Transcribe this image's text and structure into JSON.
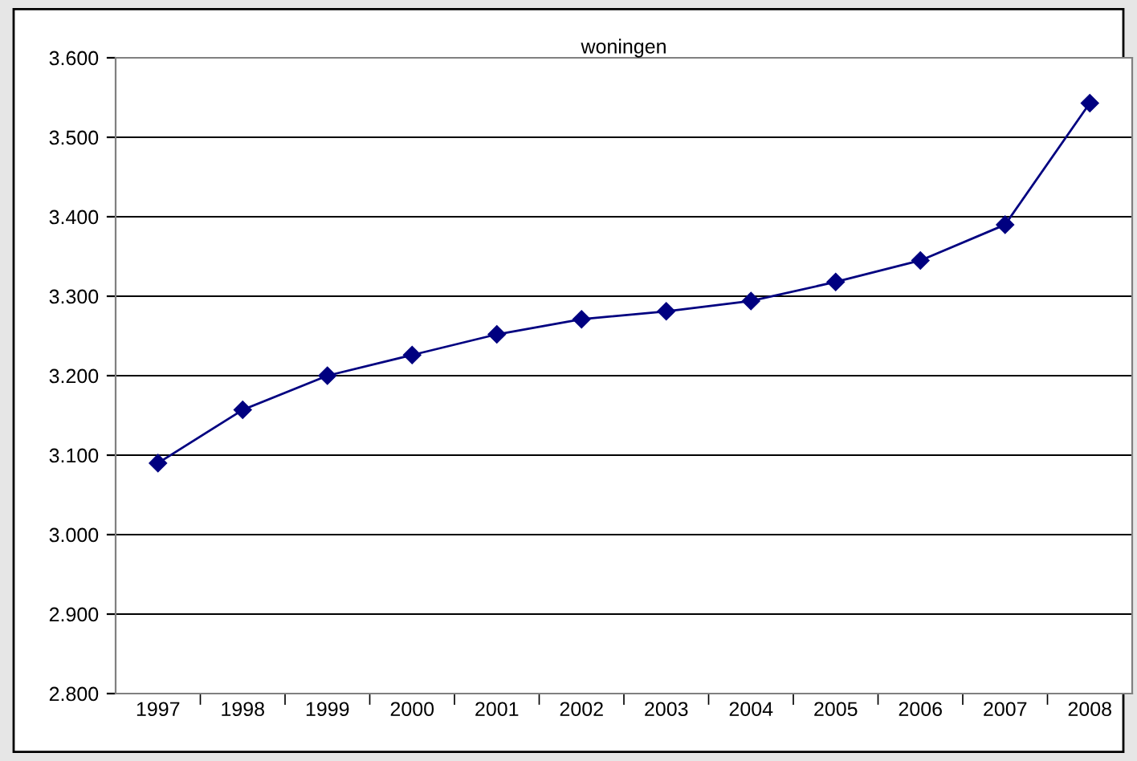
{
  "chart_data": {
    "type": "line",
    "title": "woningen",
    "categories": [
      "1997",
      "1998",
      "1999",
      "2000",
      "2001",
      "2002",
      "2003",
      "2004",
      "2005",
      "2006",
      "2007",
      "2008"
    ],
    "series": [
      {
        "color": "#000080",
        "values": [
          3090,
          3157,
          3200,
          3226,
          3252,
          3271,
          3281,
          3294,
          3318,
          3345,
          3390,
          3543
        ]
      }
    ],
    "ylim": [
      2800,
      3600
    ],
    "yticks": [
      {
        "value": 2800,
        "label": "2.800"
      },
      {
        "value": 2900,
        "label": "2.900"
      },
      {
        "value": 3000,
        "label": "3.000"
      },
      {
        "value": 3100,
        "label": "3.100"
      },
      {
        "value": 3200,
        "label": "3.200"
      },
      {
        "value": 3300,
        "label": "3.300"
      },
      {
        "value": 3400,
        "label": "3.400"
      },
      {
        "value": 3500,
        "label": "3.500"
      },
      {
        "value": 3600,
        "label": "3.600"
      }
    ],
    "grid": "y",
    "marker": "diamond",
    "line_style": "solid"
  }
}
